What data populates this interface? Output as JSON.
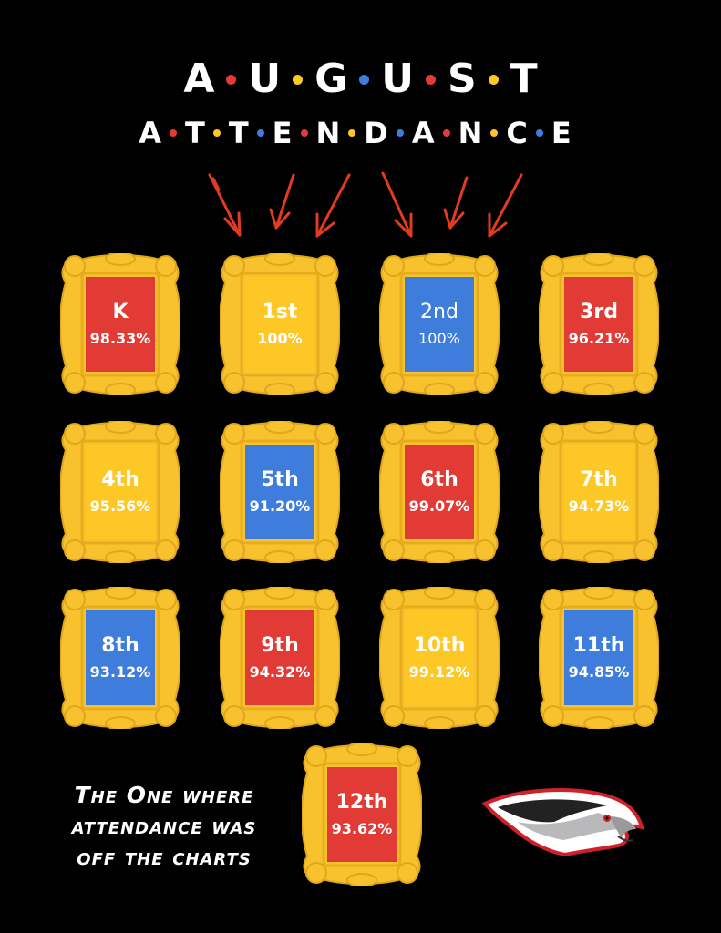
{
  "colors": {
    "red": "#e23b36",
    "yellow": "#fdc726",
    "blue": "#3f7ddd",
    "frame": "#f7c22d"
  },
  "title": {
    "line1": [
      "A",
      "U",
      "G",
      "U",
      "S",
      "T"
    ],
    "line2": [
      "A",
      "T",
      "T",
      "E",
      "N",
      "D",
      "A",
      "N",
      "C",
      "E"
    ],
    "dot_cycle": [
      "red",
      "yellow",
      "blue"
    ]
  },
  "grades": [
    {
      "grade": "K",
      "pct": "98.33%",
      "color": "red"
    },
    {
      "grade": "1st",
      "pct": "100%",
      "color": "yellow"
    },
    {
      "grade": "2nd",
      "pct": "100%",
      "color": "blue"
    },
    {
      "grade": "3rd",
      "pct": "96.21%",
      "color": "red"
    },
    {
      "grade": "4th",
      "pct": "95.56%",
      "color": "yellow"
    },
    {
      "grade": "5th",
      "pct": "91.20%",
      "color": "blue"
    },
    {
      "grade": "6th",
      "pct": "99.07%",
      "color": "red"
    },
    {
      "grade": "7th",
      "pct": "94.73%",
      "color": "yellow"
    },
    {
      "grade": "8th",
      "pct": "93.12%",
      "color": "blue"
    },
    {
      "grade": "9th",
      "pct": "94.32%",
      "color": "red"
    },
    {
      "grade": "10th",
      "pct": "99.12%",
      "color": "yellow"
    },
    {
      "grade": "11th",
      "pct": "94.85%",
      "color": "blue"
    },
    {
      "grade": "12th",
      "pct": "93.62%",
      "color": "red"
    }
  ],
  "slogan": {
    "line1": "The One where",
    "line2": "attendance was",
    "line3": "off the charts"
  },
  "logo": {
    "icon": "eagle-head-icon"
  }
}
